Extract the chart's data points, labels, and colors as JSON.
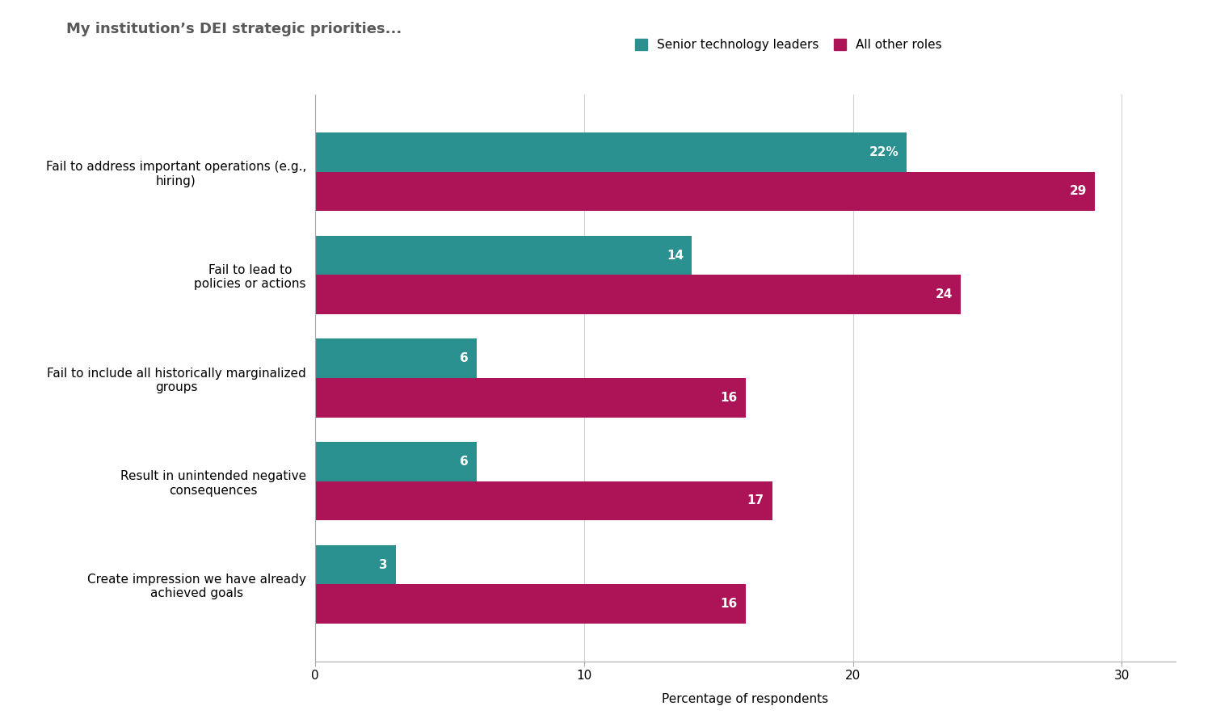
{
  "title": "My institution’s DEI strategic priorities...",
  "title_fontsize": 13,
  "title_color": "#595959",
  "categories": [
    "Fail to address important operations (e.g.,\nhiring)",
    "Fail to lead to\npolicies or actions",
    "Fail to include all historically marginalized\ngroups",
    "Result in unintended negative\nconsequences",
    "Create impression we have already\nachieved goals"
  ],
  "senior_values": [
    22,
    14,
    6,
    6,
    3
  ],
  "other_values": [
    29,
    24,
    16,
    17,
    16
  ],
  "senior_color": "#2a9090",
  "other_color": "#ad1457",
  "senior_label": "Senior technology leaders",
  "other_label": "All other roles",
  "xlabel": "Percentage of respondents",
  "xlabel_fontsize": 11,
  "xlim": [
    0,
    32
  ],
  "xticks": [
    0,
    10,
    20,
    30
  ],
  "bar_height": 0.38,
  "label_fontsize": 11,
  "tick_fontsize": 11,
  "legend_fontsize": 11,
  "background_color": "#ffffff",
  "grid_color": "#d0d0d0"
}
